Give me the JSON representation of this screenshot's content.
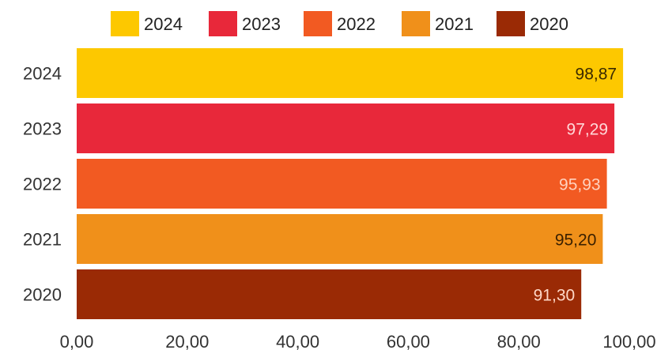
{
  "chart_data": {
    "type": "bar",
    "orientation": "horizontal",
    "title": "",
    "xlabel": "",
    "ylabel": "",
    "categories": [
      "2024",
      "2023",
      "2022",
      "2021",
      "2020"
    ],
    "values": [
      98.87,
      97.29,
      95.93,
      95.2,
      91.3
    ],
    "value_labels": [
      "98,87",
      "97,29",
      "95,93",
      "95,20",
      "91,30"
    ],
    "colors": [
      "#FDC800",
      "#E8283A",
      "#F25A22",
      "#F0901A",
      "#9A2A05"
    ],
    "value_label_colors": [
      "#3a2a00",
      "#ffd8d8",
      "#ffd2bf",
      "#3a2000",
      "#ffd8c8"
    ],
    "xlim": [
      0,
      100
    ],
    "xticks": [
      0,
      20,
      40,
      60,
      80,
      100
    ],
    "xtick_labels": [
      "0,00",
      "20,00",
      "40,00",
      "60,00",
      "80,00",
      "100,00"
    ],
    "legend": {
      "placement": "top",
      "entries": [
        "2024",
        "2023",
        "2022",
        "2021",
        "2020"
      ]
    },
    "grid": false
  }
}
